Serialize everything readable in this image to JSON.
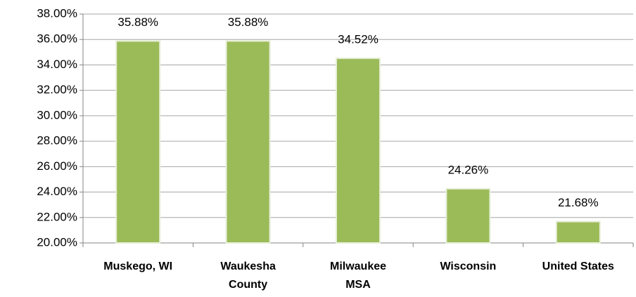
{
  "chart_data": {
    "type": "bar",
    "categories": [
      "Muskego, WI",
      "Waukesha County",
      "Milwaukee MSA",
      "Wisconsin",
      "United States"
    ],
    "values": [
      35.88,
      35.88,
      34.52,
      24.26,
      21.68
    ],
    "value_labels": [
      "35.88%",
      "35.88%",
      "34.52%",
      "24.26%",
      "21.68%"
    ],
    "color": "#9bbb59",
    "ylim": [
      20,
      38
    ],
    "yticks": [
      {
        "value": 20,
        "label": "20.00%"
      },
      {
        "value": 22,
        "label": "22.00%"
      },
      {
        "value": 24,
        "label": "24.00%"
      },
      {
        "value": 26,
        "label": "26.00%"
      },
      {
        "value": 28,
        "label": "28.00%"
      },
      {
        "value": 30,
        "label": "30.00%"
      },
      {
        "value": 32,
        "label": "32.00%"
      },
      {
        "value": 34,
        "label": "34.00%"
      },
      {
        "value": 36,
        "label": "36.00%"
      },
      {
        "value": 38,
        "label": "38.00%"
      }
    ],
    "grid": true
  }
}
